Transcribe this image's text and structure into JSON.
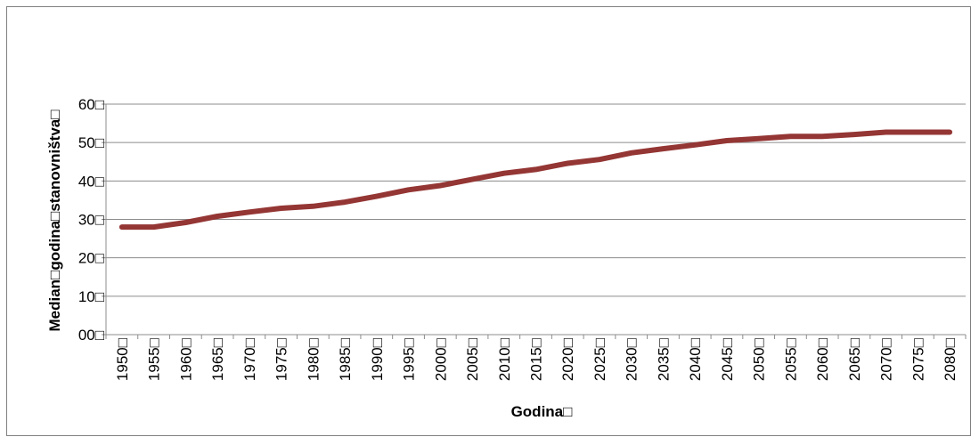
{
  "chart_data": {
    "type": "line",
    "title": "",
    "xlabel": "Godina□",
    "ylabel": "Median□godina□stanovništva□",
    "ylim": [
      0,
      60
    ],
    "grid": true,
    "legend": "none",
    "line_color": "#943634",
    "yticks": [
      {
        "value": 0,
        "label": "00□"
      },
      {
        "value": 10,
        "label": "10□"
      },
      {
        "value": 20,
        "label": "20□"
      },
      {
        "value": 30,
        "label": "30□"
      },
      {
        "value": 40,
        "label": "40□"
      },
      {
        "value": 50,
        "label": "50□"
      },
      {
        "value": 60,
        "label": "60□"
      }
    ],
    "categories": [
      "1950□",
      "1955□",
      "1960□",
      "1965□",
      "1970□",
      "1975□",
      "1980□",
      "1985□",
      "1990□",
      "1995□",
      "2000□",
      "2005□",
      "2010□",
      "2015□",
      "2020□",
      "2025□",
      "2030□",
      "2035□",
      "2040□",
      "2045□",
      "2050□",
      "2055□",
      "2060□",
      "2065□",
      "2070□",
      "2075□",
      "2080□"
    ],
    "series": [
      {
        "values": [
          28.0,
          28.0,
          29.2,
          30.8,
          31.9,
          32.9,
          33.4,
          34.5,
          36.0,
          37.7,
          38.8,
          40.4,
          42.0,
          43.0,
          44.6,
          45.6,
          47.3,
          48.4,
          49.4,
          50.5,
          51.0,
          51.6,
          51.6,
          52.1,
          52.7,
          52.7,
          52.7
        ]
      }
    ]
  }
}
